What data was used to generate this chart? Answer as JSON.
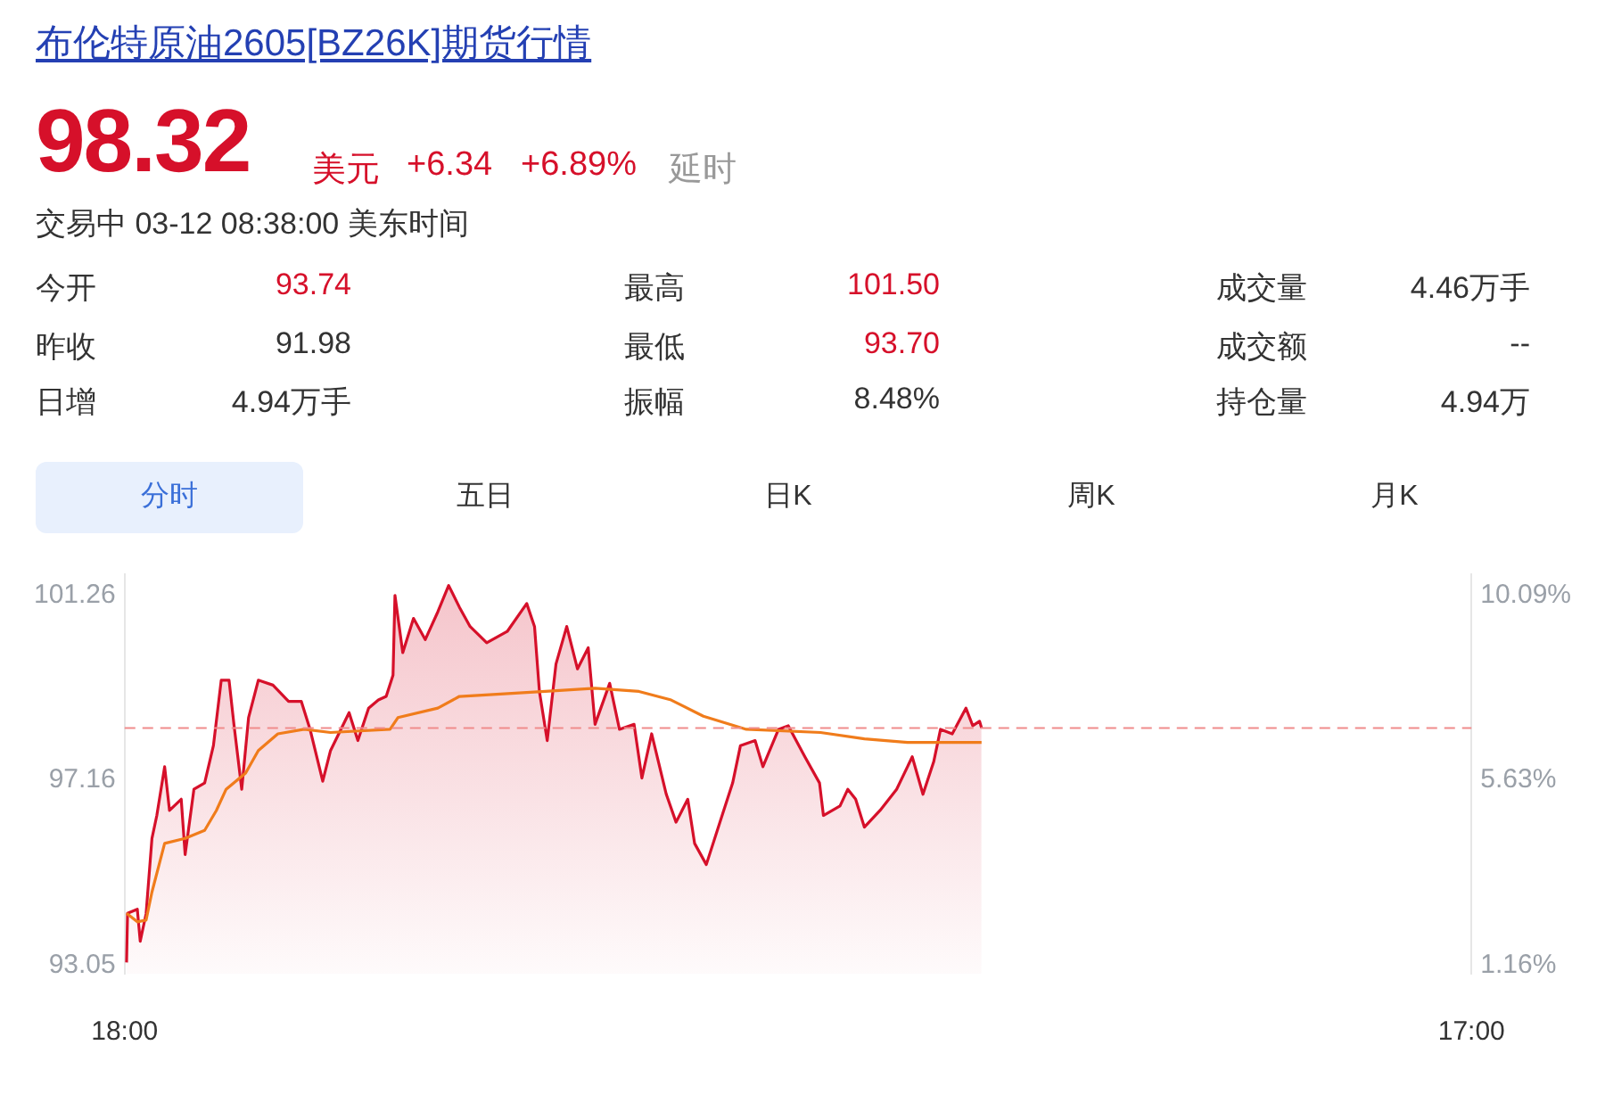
{
  "chart_data": [
    {
      "type": "other",
      "title": "布伦特原油2605[BZ26K]期货行情",
      "annotations": [
        "98.32",
        "美元",
        "+6.34",
        "+6.89%",
        "延时",
        "交易中 03-12 08:38:00 美东时间",
        "今开",
        "93.74",
        "最高",
        "101.50",
        "成交量",
        "4.46万手",
        "昨收",
        "91.98",
        "最低",
        "93.70",
        "成交额",
        "--",
        "日增",
        "4.94万手",
        "振幅",
        "8.48%",
        "持仓量",
        "4.94万",
        "分时",
        "五日",
        "日K",
        "周K",
        "月K"
      ]
    },
    {
      "type": "line",
      "xlim": [
        "--03-11T18:00",
        "--03-12T17:00"
      ],
      "xticks": [
        {
          "value": "--03-11T18:00",
          "label": "18:00"
        },
        {
          "value": "--03-12T17:00",
          "label": "17:00"
        }
      ],
      "ylim": [
        92.87,
        101.73
      ],
      "yticks": [
        93.05,
        97.16,
        101.26
      ],
      "y2lim": [
        0.97,
        10.6
      ],
      "y2ticks": [
        {
          "value": 1.16,
          "label": "1.16%"
        },
        {
          "value": 5.63,
          "label": "5.63%"
        },
        {
          "value": 10.09,
          "label": "10.09%"
        }
      ],
      "grid": false,
      "legend": false,
      "marker": "none",
      "ref_lines": [
        {
          "axis": "y",
          "value": 98.32,
          "color": "#f08c8c",
          "line_style": "dashed"
        }
      ],
      "series": [
        {
          "type": "area",
          "color": "#d6102a",
          "x": [
            "--03-11T18:02",
            "--03-11T18:03",
            "--03-11T18:13",
            "--03-11T18:16",
            "--03-11T18:22",
            "--03-11T18:28",
            "--03-11T18:33",
            "--03-11T18:41",
            "--03-11T18:46",
            "--03-11T18:58",
            "--03-11T19:02",
            "--03-11T19:11",
            "--03-11T19:22",
            "--03-11T19:31",
            "--03-11T19:39",
            "--03-11T19:47",
            "--03-11T19:52",
            "--03-11T20:00",
            "--03-11T20:07",
            "--03-11T20:17",
            "--03-11T20:32",
            "--03-11T20:48",
            "--03-11T21:01",
            "--03-11T21:10",
            "--03-11T21:23",
            "--03-11T21:31",
            "--03-11T21:50",
            "--03-11T21:59",
            "--03-11T22:10",
            "--03-11T22:20",
            "--03-11T22:28",
            "--03-11T22:35",
            "--03-11T22:37",
            "--03-11T22:45",
            "--03-11T22:56",
            "--03-11T23:08",
            "--03-11T23:21",
            "--03-11T23:32",
            "--03-11T23:43",
            "--03-11T23:54",
            "--03-12T00:11",
            "--03-12T00:32",
            "--03-12T00:52",
            "--03-12T01:00",
            "--03-12T01:05",
            "--03-12T01:13",
            "--03-12T01:22",
            "--03-12T01:33",
            "--03-12T01:44",
            "--03-12T01:55",
            "--03-12T02:02",
            "--03-12T02:17",
            "--03-12T02:27",
            "--03-12T02:42",
            "--03-12T02:50",
            "--03-12T03:00",
            "--03-12T03:15",
            "--03-12T03:25",
            "--03-12T03:37",
            "--03-12T03:44",
            "--03-12T03:56",
            "--03-12T04:10",
            "--03-12T04:23",
            "--03-12T04:31",
            "--03-12T04:46",
            "--03-12T04:54",
            "--03-12T05:10",
            "--03-12T05:20",
            "--03-12T05:37",
            "--03-12T05:52",
            "--03-12T05:56",
            "--03-12T06:13",
            "--03-12T06:21",
            "--03-12T06:29",
            "--03-12T06:38",
            "--03-12T06:54",
            "--03-12T07:11",
            "--03-12T07:27",
            "--03-12T07:38",
            "--03-12T07:49",
            "--03-12T07:56",
            "--03-12T08:08",
            "--03-12T08:22",
            "--03-12T08:29",
            "--03-12T08:36",
            "--03-12T08:38"
          ],
          "values": [
            93.12,
            94.21,
            94.3,
            93.59,
            94.2,
            95.87,
            96.38,
            97.46,
            96.49,
            96.74,
            95.51,
            96.96,
            97.1,
            97.93,
            99.38,
            99.38,
            98.4,
            96.96,
            98.55,
            99.38,
            99.27,
            98.91,
            98.91,
            98.29,
            97.14,
            97.82,
            98.66,
            98.04,
            98.76,
            98.94,
            99.02,
            99.49,
            101.26,
            99.99,
            100.75,
            100.28,
            100.9,
            101.48,
            101.0,
            100.57,
            100.21,
            100.46,
            101.08,
            100.57,
            99.13,
            98.04,
            99.74,
            100.57,
            99.63,
            100.1,
            98.4,
            99.31,
            98.29,
            98.4,
            97.21,
            98.19,
            96.85,
            96.23,
            96.74,
            95.76,
            95.29,
            96.23,
            97.1,
            97.93,
            98.04,
            97.46,
            98.29,
            98.37,
            97.68,
            97.1,
            96.38,
            96.59,
            96.96,
            96.74,
            96.12,
            96.49,
            96.96,
            97.68,
            96.85,
            97.57,
            98.29,
            98.19,
            98.76,
            98.37,
            98.47,
            98.32
          ]
        },
        {
          "type": "line",
          "color": "#f07c1b",
          "x": [
            "--03-11T18:02",
            "--03-11T18:13",
            "--03-11T18:22",
            "--03-11T18:28",
            "--03-11T18:41",
            "--03-11T19:02",
            "--03-11T19:22",
            "--03-11T19:34",
            "--03-11T19:44",
            "--03-11T20:04",
            "--03-11T20:17",
            "--03-11T20:37",
            "--03-11T21:04",
            "--03-11T21:31",
            "--03-11T22:32",
            "--03-11T22:40",
            "--03-11T23:21",
            "--03-11T23:43",
            "--03-12T01:11",
            "--03-12T02:02",
            "--03-12T02:47",
            "--03-12T03:20",
            "--03-12T03:53",
            "--03-12T04:37",
            "--03-12T05:53",
            "--03-12T06:38",
            "--03-12T07:22",
            "--03-12T08:38"
          ],
          "values": [
            94.21,
            94.02,
            94.06,
            94.68,
            95.76,
            95.87,
            96.05,
            96.49,
            96.96,
            97.32,
            97.82,
            98.19,
            98.29,
            98.22,
            98.29,
            98.55,
            98.76,
            99.02,
            99.13,
            99.2,
            99.13,
            98.94,
            98.58,
            98.29,
            98.22,
            98.08,
            98.0,
            98.0
          ]
        }
      ]
    }
  ]
}
